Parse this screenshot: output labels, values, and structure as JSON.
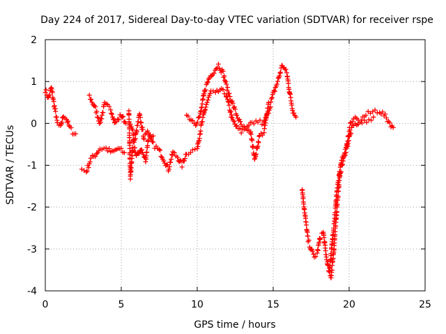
{
  "chart_data": {
    "type": "scatter",
    "title": "Day 224 of 2017, Sidereal Day-to-day VTEC variation (SDTVAR) for receiver rspe",
    "xlabel": "GPS time / hours",
    "ylabel": "SDTVAR / TECUs",
    "xlim": [
      0,
      25
    ],
    "ylim": [
      -4,
      2
    ],
    "xticks": [
      "0",
      "5",
      "10",
      "15",
      "20",
      "25"
    ],
    "yticks": [
      "2",
      "1",
      "0",
      "-1",
      "-2",
      "-3",
      "-4"
    ],
    "grid": true,
    "marker": "plus",
    "color": "#ff0000",
    "series": [
      {
        "name": "SDTVAR",
        "keypoints": [
          [
            [
              0.0,
              0.8
            ],
            [
              0.2,
              0.6
            ],
            [
              0.4,
              0.85
            ],
            [
              0.6,
              0.4
            ],
            [
              0.8,
              0.0
            ],
            [
              1.0,
              -0.1
            ],
            [
              1.2,
              0.2
            ],
            [
              1.4,
              0.1
            ],
            [
              1.6,
              -0.1
            ],
            [
              1.8,
              -0.2
            ],
            [
              2.0,
              -0.25
            ]
          ],
          [
            [
              2.4,
              -1.1
            ],
            [
              2.7,
              -1.15
            ],
            [
              3.0,
              -0.85
            ],
            [
              3.3,
              -0.75
            ],
            [
              3.6,
              -0.6
            ],
            [
              4.0,
              -0.6
            ],
            [
              4.4,
              -0.7
            ],
            [
              4.8,
              -0.6
            ],
            [
              5.2,
              -0.7
            ]
          ],
          [
            [
              2.9,
              0.65
            ],
            [
              3.3,
              0.35
            ],
            [
              3.6,
              0.0
            ],
            [
              3.9,
              0.45
            ],
            [
              4.3,
              0.35
            ],
            [
              4.6,
              0.0
            ],
            [
              5.0,
              0.2
            ],
            [
              5.3,
              0.0
            ]
          ],
          [
            [
              5.5,
              0.3
            ],
            [
              5.6,
              -1.3
            ],
            [
              5.8,
              -0.4
            ],
            [
              6.0,
              -0.8
            ],
            [
              6.3,
              -0.6
            ],
            [
              6.6,
              -0.9
            ],
            [
              6.8,
              -0.3
            ],
            [
              7.1,
              -0.5
            ],
            [
              7.5,
              -0.65
            ],
            [
              7.8,
              -0.85
            ],
            [
              8.1,
              -1.1
            ],
            [
              8.4,
              -0.7
            ],
            [
              8.7,
              -0.8
            ],
            [
              9.0,
              -1.0
            ],
            [
              9.3,
              -0.7
            ],
            [
              9.7,
              -0.65
            ],
            [
              10.0,
              -0.6
            ],
            [
              10.3,
              0.0
            ],
            [
              10.6,
              0.45
            ],
            [
              10.9,
              0.75
            ],
            [
              11.2,
              0.7
            ],
            [
              11.5,
              0.8
            ],
            [
              11.9,
              0.7
            ],
            [
              12.1,
              0.4
            ],
            [
              12.3,
              0.1
            ],
            [
              12.6,
              -0.1
            ],
            [
              12.9,
              -0.2
            ],
            [
              13.2,
              -0.1
            ],
            [
              13.5,
              -0.2
            ],
            [
              13.8,
              -0.85
            ],
            [
              14.1,
              -0.3
            ],
            [
              14.4,
              -0.2
            ],
            [
              14.7,
              0.5
            ]
          ],
          [
            [
              5.6,
              0.0
            ],
            [
              5.9,
              -0.4
            ],
            [
              6.2,
              0.2
            ],
            [
              6.5,
              -0.35
            ],
            [
              6.8,
              -0.2
            ],
            [
              7.1,
              -0.3
            ]
          ],
          [
            [
              9.3,
              0.2
            ],
            [
              9.6,
              0.1
            ],
            [
              9.9,
              0.0
            ],
            [
              10.2,
              0.2
            ],
            [
              10.5,
              0.8
            ],
            [
              10.8,
              1.1
            ],
            [
              11.1,
              1.25
            ],
            [
              11.4,
              1.4
            ],
            [
              11.7,
              1.2
            ],
            [
              12.0,
              0.8
            ],
            [
              12.3,
              0.5
            ],
            [
              12.6,
              0.2
            ],
            [
              12.9,
              -0.05
            ],
            [
              13.2,
              -0.15
            ],
            [
              13.6,
              0.0
            ],
            [
              14.0,
              0.05
            ],
            [
              14.4,
              0.0
            ],
            [
              14.7,
              0.3
            ],
            [
              15.0,
              0.7
            ],
            [
              15.3,
              1.0
            ],
            [
              15.6,
              1.4
            ],
            [
              15.9,
              1.2
            ],
            [
              16.1,
              0.7
            ],
            [
              16.3,
              0.3
            ],
            [
              16.5,
              0.15
            ]
          ],
          [
            [
              16.9,
              -1.55
            ],
            [
              17.1,
              -2.2
            ],
            [
              17.3,
              -2.8
            ],
            [
              17.5,
              -3.0
            ],
            [
              17.7,
              -3.2
            ],
            [
              17.9,
              -3.1
            ],
            [
              18.1,
              -2.7
            ],
            [
              18.3,
              -2.6
            ],
            [
              18.5,
              -3.2
            ],
            [
              18.7,
              -3.6
            ],
            [
              18.8,
              -3.7
            ],
            [
              19.0,
              -3.0
            ],
            [
              19.2,
              -2.0
            ],
            [
              19.4,
              -1.2
            ],
            [
              19.6,
              -0.9
            ],
            [
              19.9,
              -0.5
            ],
            [
              20.2,
              -0.1
            ],
            [
              20.5,
              0.0
            ],
            [
              20.8,
              0.1
            ],
            [
              21.1,
              0.2
            ],
            [
              21.4,
              0.25
            ],
            [
              21.7,
              0.3
            ],
            [
              22.0,
              0.3
            ],
            [
              22.3,
              0.2
            ],
            [
              22.6,
              0.05
            ],
            [
              22.9,
              -0.1
            ]
          ],
          [
            [
              18.7,
              -3.5
            ],
            [
              18.9,
              -2.8
            ],
            [
              19.2,
              -1.6
            ],
            [
              19.5,
              -0.9
            ],
            [
              19.8,
              -0.6
            ],
            [
              20.1,
              0.0
            ],
            [
              20.4,
              0.1
            ],
            [
              20.7,
              0.0
            ],
            [
              21.0,
              0.05
            ],
            [
              21.3,
              0.1
            ],
            [
              21.6,
              0.15
            ]
          ]
        ]
      }
    ]
  }
}
